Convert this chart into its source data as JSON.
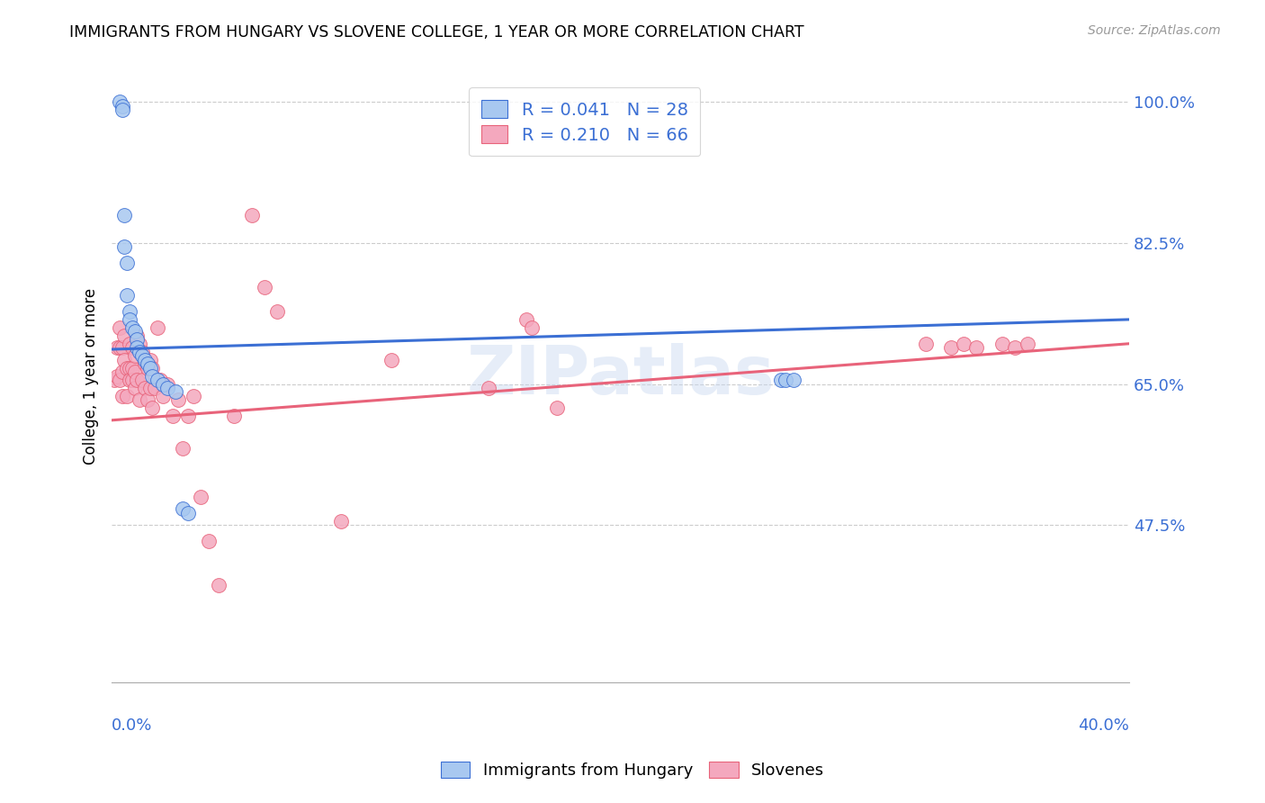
{
  "title": "IMMIGRANTS FROM HUNGARY VS SLOVENE COLLEGE, 1 YEAR OR MORE CORRELATION CHART",
  "source": "Source: ZipAtlas.com",
  "ylabel": "College, 1 year or more",
  "right_yticks": [
    47.5,
    65.0,
    82.5,
    100.0
  ],
  "right_ytick_labels": [
    "47.5%",
    "65.0%",
    "82.5%",
    "100.0%"
  ],
  "xmin": 0.0,
  "xmax": 0.4,
  "ymin": 0.28,
  "ymax": 1.04,
  "legend_blue_label": "R = 0.041   N = 28",
  "legend_pink_label": "R = 0.210   N = 66",
  "legend_bottom_blue": "Immigrants from Hungary",
  "legend_bottom_pink": "Slovenes",
  "blue_color": "#a8c8f0",
  "pink_color": "#f4a8be",
  "blue_line_color": "#3b6fd4",
  "pink_line_color": "#e8637a",
  "blue_x": [
    0.003,
    0.004,
    0.004,
    0.005,
    0.005,
    0.006,
    0.006,
    0.007,
    0.007,
    0.008,
    0.009,
    0.01,
    0.01,
    0.011,
    0.012,
    0.013,
    0.014,
    0.015,
    0.016,
    0.018,
    0.02,
    0.022,
    0.025,
    0.028,
    0.03,
    0.263,
    0.265,
    0.268
  ],
  "blue_y": [
    1.0,
    0.995,
    0.99,
    0.86,
    0.82,
    0.8,
    0.76,
    0.74,
    0.73,
    0.72,
    0.715,
    0.705,
    0.695,
    0.69,
    0.685,
    0.68,
    0.675,
    0.67,
    0.66,
    0.655,
    0.65,
    0.645,
    0.64,
    0.495,
    0.49,
    0.655,
    0.655,
    0.655
  ],
  "pink_x": [
    0.001,
    0.002,
    0.002,
    0.003,
    0.003,
    0.003,
    0.004,
    0.004,
    0.004,
    0.005,
    0.005,
    0.006,
    0.006,
    0.007,
    0.007,
    0.007,
    0.008,
    0.008,
    0.008,
    0.009,
    0.009,
    0.009,
    0.01,
    0.01,
    0.011,
    0.011,
    0.012,
    0.012,
    0.013,
    0.013,
    0.014,
    0.014,
    0.015,
    0.015,
    0.016,
    0.016,
    0.017,
    0.018,
    0.019,
    0.02,
    0.022,
    0.024,
    0.026,
    0.028,
    0.03,
    0.032,
    0.035,
    0.038,
    0.042,
    0.048,
    0.055,
    0.06,
    0.065,
    0.09,
    0.11,
    0.148,
    0.163,
    0.165,
    0.175,
    0.32,
    0.33,
    0.335,
    0.34,
    0.35,
    0.355,
    0.36
  ],
  "pink_y": [
    0.655,
    0.695,
    0.66,
    0.72,
    0.695,
    0.655,
    0.695,
    0.665,
    0.635,
    0.71,
    0.68,
    0.67,
    0.635,
    0.7,
    0.67,
    0.655,
    0.695,
    0.67,
    0.655,
    0.685,
    0.665,
    0.645,
    0.71,
    0.655,
    0.7,
    0.63,
    0.69,
    0.655,
    0.675,
    0.645,
    0.67,
    0.63,
    0.68,
    0.645,
    0.67,
    0.62,
    0.645,
    0.72,
    0.655,
    0.635,
    0.65,
    0.61,
    0.63,
    0.57,
    0.61,
    0.635,
    0.51,
    0.455,
    0.4,
    0.61,
    0.86,
    0.77,
    0.74,
    0.48,
    0.68,
    0.645,
    0.73,
    0.72,
    0.62,
    0.7,
    0.695,
    0.7,
    0.695,
    0.7,
    0.695,
    0.7
  ],
  "blue_trend_x0": 0.0,
  "blue_trend_x1": 0.4,
  "blue_trend_y0": 0.693,
  "blue_trend_y1": 0.73,
  "pink_trend_x0": 0.0,
  "pink_trend_x1": 0.4,
  "pink_trend_y0": 0.605,
  "pink_trend_y1": 0.7
}
